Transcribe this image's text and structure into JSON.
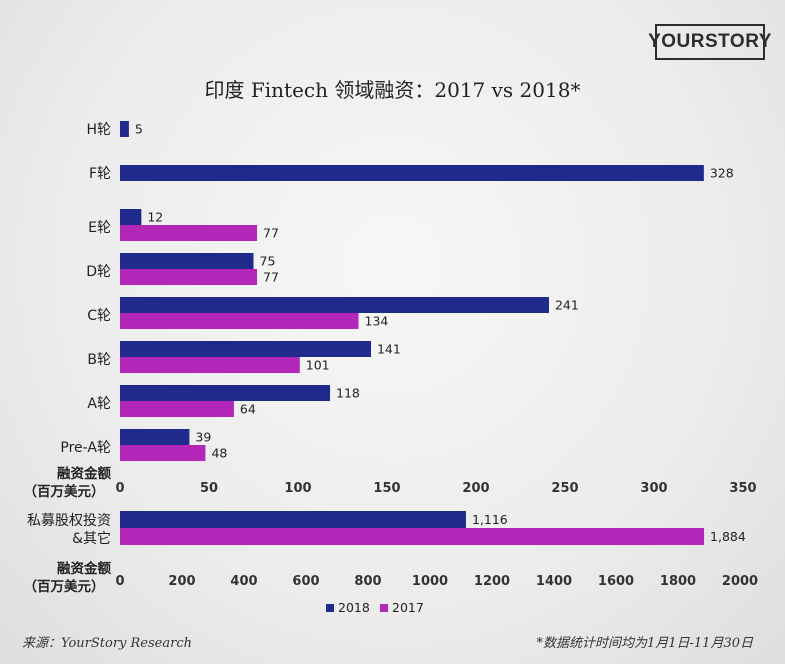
{
  "logo_text": "YOURSTORY",
  "footer": {
    "source": "来源：YourStory Research",
    "note": "*数据统计时间均为1月1日-11月30日"
  },
  "colors": {
    "2018": "#1f2a8c",
    "2017": "#b327b8"
  },
  "chart_data": [
    {
      "type": "bar",
      "orientation": "horizontal",
      "title": "印度 Fintech 领域融资：2017 vs 2018*",
      "xlabel": "融资金额（百万美元）",
      "xlim": [
        0,
        350
      ],
      "xticks": [
        0,
        50,
        100,
        150,
        200,
        250,
        300,
        350
      ],
      "categories": [
        "H轮",
        "F轮",
        "E轮",
        "D轮",
        "C轮",
        "B轮",
        "A轮",
        "Pre-A轮"
      ],
      "series": [
        {
          "name": "2018",
          "values": [
            5,
            328,
            12,
            75,
            241,
            141,
            118,
            39
          ]
        },
        {
          "name": "2017",
          "values": [
            null,
            null,
            77,
            77,
            134,
            101,
            64,
            48
          ]
        }
      ],
      "grid": false
    },
    {
      "type": "bar",
      "orientation": "horizontal",
      "xlabel": "融资金额（百万美元）",
      "xlim": [
        0,
        2000
      ],
      "xticks": [
        0,
        200,
        400,
        600,
        800,
        1000,
        1200,
        1400,
        1600,
        1800,
        2000
      ],
      "categories": [
        "私募股权投资&其它"
      ],
      "series": [
        {
          "name": "2018",
          "values": [
            1116
          ],
          "labels": [
            "1,116"
          ]
        },
        {
          "name": "2017",
          "values": [
            1884
          ],
          "labels": [
            "1,884"
          ]
        }
      ],
      "grid": false,
      "legend": "bottom-center"
    }
  ]
}
